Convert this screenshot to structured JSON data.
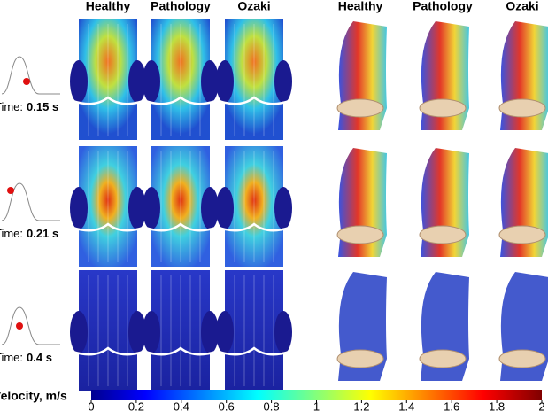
{
  "columns_2d": [
    "Healthy",
    "Pathology",
    "Ozaki"
  ],
  "columns_3d": [
    "Healthy",
    "Pathology",
    "Ozaki"
  ],
  "rows": [
    {
      "label": "Time:",
      "value": "0.15 s"
    },
    {
      "label": "Time:",
      "value": "0.21 s"
    },
    {
      "label": "Time:",
      "value": "0.4 s"
    }
  ],
  "colorbar": {
    "label": "Velocity, m/s",
    "lim": [
      0,
      2
    ],
    "ticks": [
      0,
      0.2,
      0.4,
      0.6,
      0.8,
      1,
      1.2,
      1.4,
      1.6,
      1.8,
      2
    ]
  }
}
